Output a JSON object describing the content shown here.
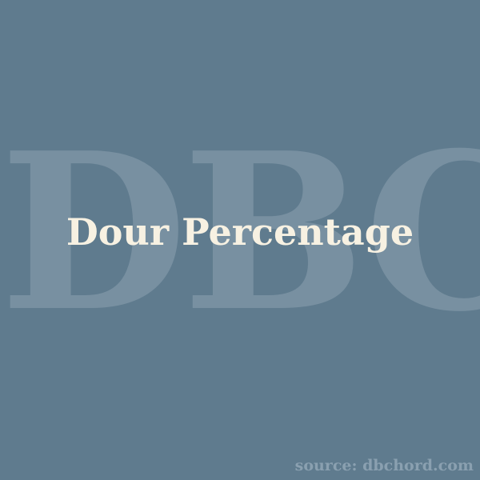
{
  "watermark": {
    "text": "DBC",
    "color": "#7890a1"
  },
  "title": {
    "text": "Dour Percentage",
    "color": "#f7f1e2"
  },
  "source": {
    "text": "source: dbchord.com",
    "color": "#8aa0b0"
  },
  "background_color": "#5f7b8e"
}
